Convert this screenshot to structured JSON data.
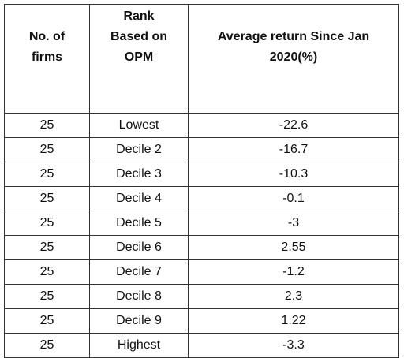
{
  "table": {
    "header": [
      [
        "No. of",
        "firms"
      ],
      [
        "Rank",
        "Based on",
        "OPM"
      ],
      [
        "Average return Since Jan",
        "2020(%)"
      ]
    ],
    "rows": [
      [
        25,
        "Lowest",
        -22.6
      ],
      [
        25,
        "Decile 2",
        -16.7
      ],
      [
        25,
        "Decile 3",
        -10.3
      ],
      [
        25,
        "Decile 4",
        -0.1
      ],
      [
        25,
        "Decile 5",
        -3
      ],
      [
        25,
        "Decile 6",
        2.55
      ],
      [
        25,
        "Decile 7",
        -1.2
      ],
      [
        25,
        "Decile 8",
        2.3
      ],
      [
        25,
        "Decile 9",
        1.22
      ],
      [
        25,
        "Highest",
        -3.3
      ]
    ]
  }
}
